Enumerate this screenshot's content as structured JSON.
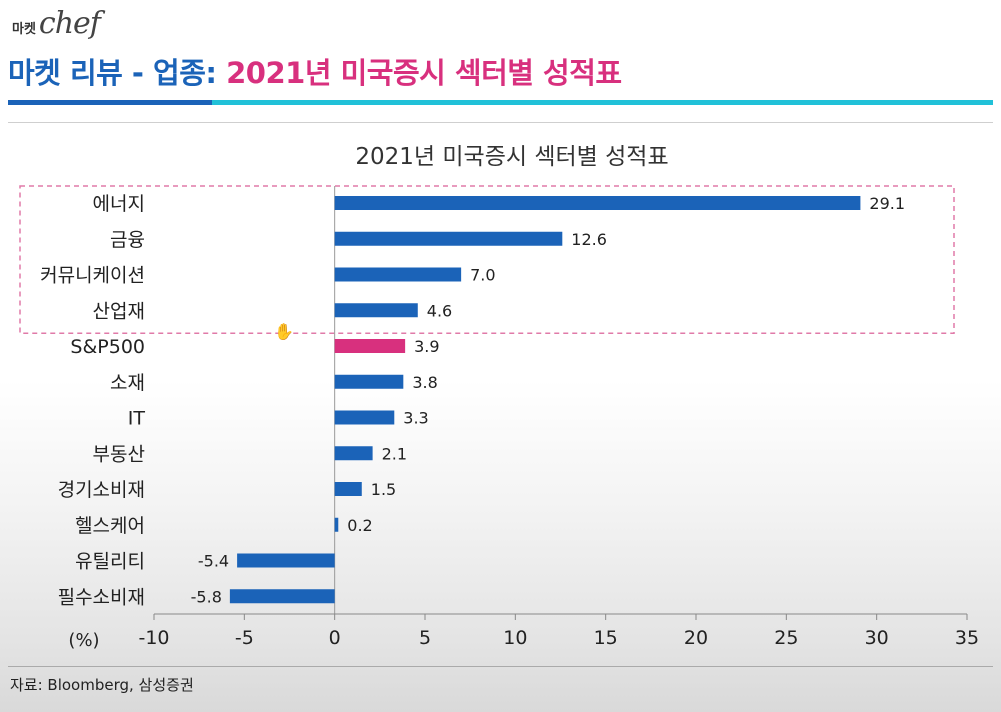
{
  "brand": {
    "small": "마켓",
    "script": "chef"
  },
  "header": {
    "prefix": "마켓 리뷰 - 업종: ",
    "title": "2021년 미국증시 섹터별 성적표"
  },
  "source": "자료: Bloomberg, 삼성증권",
  "colors": {
    "primary": "#1b63b8",
    "accent": "#d8307e",
    "cyan": "#21c1d8",
    "highlight_box": "#e07aa8"
  },
  "cursor_icon": "hand-cursor-icon",
  "chart_data": {
    "type": "bar",
    "orientation": "horizontal",
    "title": "2021년 미국증시 섹터별 성적표",
    "unit_label": "(%)",
    "categories": [
      "에너지",
      "금융",
      "커뮤니케이션",
      "산업재",
      "S&P500",
      "소재",
      "IT",
      "부동산",
      "경기소비재",
      "헬스케어",
      "유틸리티",
      "필수소비재"
    ],
    "values": [
      29.1,
      12.6,
      7.0,
      4.6,
      3.9,
      3.8,
      3.3,
      2.1,
      1.5,
      0.2,
      -5.4,
      -5.8
    ],
    "value_labels": [
      "29.1",
      "12.6",
      "7.0",
      "4.6",
      "3.9",
      "3.8",
      "3.3",
      "2.1",
      "1.5",
      "0.2",
      "-5.4",
      "-5.8"
    ],
    "highlight_category": "S&P500",
    "highlighted_group": [
      "에너지",
      "금융",
      "커뮤니케이션",
      "산업재"
    ],
    "xlim": [
      -10,
      35
    ],
    "xticks": [
      -10,
      -5,
      0,
      5,
      10,
      15,
      20,
      25,
      30,
      35
    ],
    "grid": false
  }
}
